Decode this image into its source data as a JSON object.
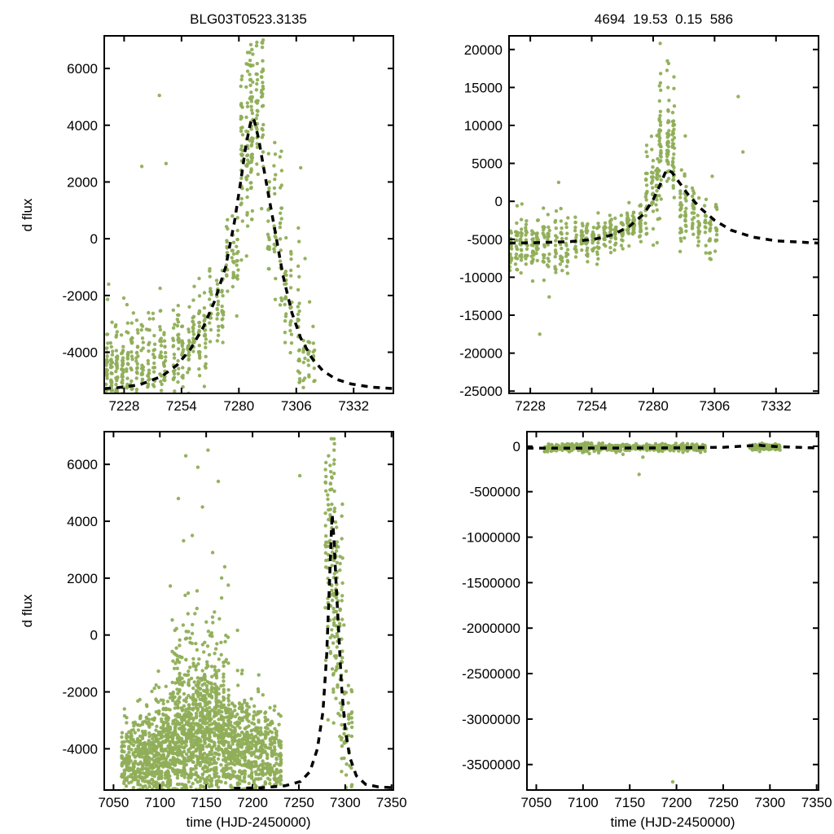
{
  "figure": {
    "background": "#ffffff",
    "scatter_color": "#8fae57",
    "model_color": "#000000",
    "axis_color": "#000000"
  },
  "chart_data": [
    {
      "id": "top-left",
      "type": "scatter",
      "title": "BLG03T0523.3135",
      "xlabel": "",
      "ylabel": "d flux",
      "xlim": [
        7219,
        7350
      ],
      "ylim": [
        -5450,
        7150
      ],
      "xticks": [
        7228,
        7254,
        7280,
        7306,
        7332
      ],
      "yticks": [
        -4000,
        -2000,
        0,
        2000,
        4000,
        6000
      ],
      "series": [
        {
          "name": "data",
          "type": "scatter",
          "clusters": [
            {
              "x0": 7219,
              "x1": 7228,
              "cy": -4600,
              "sy": 600,
              "n": 110
            },
            {
              "x0": 7219,
              "x1": 7240,
              "cy": -2800,
              "sy": 600,
              "n": 18
            },
            {
              "x0": 7228,
              "x1": 7237,
              "cy": -4400,
              "sy": 750,
              "n": 70
            },
            {
              "x0": 7238,
              "x1": 7248,
              "cy": -4200,
              "sy": 850,
              "n": 80
            },
            {
              "x0": 7249,
              "x1": 7258,
              "cy": -4000,
              "sy": 850,
              "n": 70
            },
            {
              "x0": 7258,
              "x1": 7266,
              "cy": -3500,
              "sy": 800,
              "n": 60
            },
            {
              "x0": 7266,
              "x1": 7274,
              "cy": -2600,
              "sy": 700,
              "n": 55
            },
            {
              "x0": 7274,
              "x1": 7280,
              "cy": -900,
              "sy": 800,
              "n": 45
            },
            {
              "x0": 7280,
              "x1": 7287,
              "cy": 3200,
              "sy": 1700,
              "n": 90
            },
            {
              "x0": 7284,
              "x1": 7292,
              "cy": 4600,
              "sy": 1400,
              "n": 80
            },
            {
              "x0": 7292,
              "x1": 7300,
              "cy": 700,
              "sy": 1500,
              "n": 60
            },
            {
              "x0": 7300,
              "x1": 7308,
              "cy": -2300,
              "sy": 1100,
              "n": 55
            },
            {
              "x0": 7306,
              "x1": 7315,
              "cy": -4300,
              "sy": 600,
              "n": 40
            }
          ],
          "points": [
            [
              7244,
              5050
            ],
            [
              7236,
              2550
            ],
            [
              7247,
              2650
            ],
            [
              7262,
              -1400
            ],
            [
              7291,
              7000
            ],
            [
              7288,
              6800
            ],
            [
              7308,
              2500
            ],
            [
              7310,
              -700
            ],
            [
              7221,
              -1600
            ]
          ]
        },
        {
          "name": "model",
          "type": "line",
          "dashed": true,
          "points": [
            [
              7219,
              -5280
            ],
            [
              7225,
              -5250
            ],
            [
              7235,
              -5150
            ],
            [
              7245,
              -4850
            ],
            [
              7252,
              -4450
            ],
            [
              7258,
              -3900
            ],
            [
              7264,
              -3100
            ],
            [
              7269,
              -2200
            ],
            [
              7274,
              -1000
            ],
            [
              7278,
              600
            ],
            [
              7281,
              2100
            ],
            [
              7283,
              3200
            ],
            [
              7285,
              4000
            ],
            [
              7286,
              4250
            ],
            [
              7287,
              4150
            ],
            [
              7289,
              3500
            ],
            [
              7291,
              2600
            ],
            [
              7294,
              1300
            ],
            [
              7297,
              0
            ],
            [
              7300,
              -1300
            ],
            [
              7304,
              -2600
            ],
            [
              7308,
              -3500
            ],
            [
              7313,
              -4200
            ],
            [
              7318,
              -4650
            ],
            [
              7324,
              -4950
            ],
            [
              7331,
              -5120
            ],
            [
              7340,
              -5230
            ],
            [
              7350,
              -5280
            ]
          ]
        }
      ]
    },
    {
      "id": "top-right",
      "type": "scatter",
      "title": "4694  19.53  0.15  586",
      "xlabel": "",
      "ylabel": "",
      "xlim": [
        7219,
        7350
      ],
      "ylim": [
        -25300,
        21800
      ],
      "xticks": [
        7228,
        7254,
        7280,
        7306,
        7332
      ],
      "yticks": [
        -25000,
        -20000,
        -15000,
        -10000,
        -5000,
        0,
        5000,
        10000,
        15000,
        20000
      ],
      "series": [
        {
          "name": "data",
          "type": "scatter",
          "clusters": [
            {
              "x0": 7214,
              "x1": 7232,
              "cy": -5800,
              "sy": 1700,
              "n": 160
            },
            {
              "x0": 7232,
              "x1": 7245,
              "cy": -5500,
              "sy": 2000,
              "n": 80
            },
            {
              "x0": 7246,
              "x1": 7258,
              "cy": -4800,
              "sy": 1300,
              "n": 90
            },
            {
              "x0": 7258,
              "x1": 7268,
              "cy": -4100,
              "sy": 1100,
              "n": 80
            },
            {
              "x0": 7268,
              "x1": 7276,
              "cy": -2900,
              "sy": 1300,
              "n": 70
            },
            {
              "x0": 7276,
              "x1": 7283,
              "cy": 1500,
              "sy": 3200,
              "n": 70
            },
            {
              "x0": 7282,
              "x1": 7290,
              "cy": 7500,
              "sy": 3800,
              "n": 110
            },
            {
              "x0": 7290,
              "x1": 7298,
              "cy": -800,
              "sy": 2500,
              "n": 60
            },
            {
              "x0": 7298,
              "x1": 7308,
              "cy": -3600,
              "sy": 1800,
              "n": 55
            }
          ],
          "points": [
            [
              7283,
              20800
            ],
            [
              7286,
              18500
            ],
            [
              7316,
              13800
            ],
            [
              7318,
              6500
            ],
            [
              7232,
              -17500
            ],
            [
              7236,
              -12600
            ],
            [
              7229,
              -10500
            ],
            [
              7305,
              3300
            ],
            [
              7240,
              2500
            ]
          ]
        },
        {
          "name": "model",
          "type": "line",
          "dashed": true,
          "points": [
            [
              7219,
              -5500
            ],
            [
              7230,
              -5450
            ],
            [
              7245,
              -5300
            ],
            [
              7255,
              -5000
            ],
            [
              7263,
              -4400
            ],
            [
              7270,
              -3300
            ],
            [
              7276,
              -1700
            ],
            [
              7280,
              200
            ],
            [
              7283,
              2200
            ],
            [
              7285,
              3700
            ],
            [
              7286,
              4200
            ],
            [
              7288,
              3800
            ],
            [
              7291,
              2500
            ],
            [
              7295,
              800
            ],
            [
              7300,
              -900
            ],
            [
              7306,
              -2500
            ],
            [
              7313,
              -3800
            ],
            [
              7322,
              -4700
            ],
            [
              7332,
              -5200
            ],
            [
              7350,
              -5500
            ]
          ]
        }
      ]
    },
    {
      "id": "bottom-left",
      "type": "scatter",
      "title": "",
      "xlabel": "time (HJD-2450000)",
      "ylabel": "d flux",
      "xlim": [
        7040,
        7352
      ],
      "ylim": [
        -5450,
        7150
      ],
      "xticks": [
        7050,
        7100,
        7150,
        7200,
        7250,
        7300,
        7350
      ],
      "yticks": [
        -4000,
        -2000,
        0,
        2000,
        4000,
        6000
      ],
      "series": [
        {
          "name": "data",
          "type": "scatter",
          "clusters": [
            {
              "x0": 7058,
              "x1": 7075,
              "cy": -4500,
              "sy": 650,
              "n": 140
            },
            {
              "x0": 7075,
              "x1": 7095,
              "cy": -4300,
              "sy": 850,
              "n": 240
            },
            {
              "x0": 7095,
              "x1": 7115,
              "cy": -4000,
              "sy": 1050,
              "n": 290
            },
            {
              "x0": 7115,
              "x1": 7135,
              "cy": -3800,
              "sy": 1250,
              "n": 330
            },
            {
              "x0": 7135,
              "x1": 7155,
              "cy": -3600,
              "sy": 1350,
              "n": 330
            },
            {
              "x0": 7155,
              "x1": 7175,
              "cy": -3700,
              "sy": 1250,
              "n": 290
            },
            {
              "x0": 7175,
              "x1": 7195,
              "cy": -4000,
              "sy": 1050,
              "n": 240
            },
            {
              "x0": 7195,
              "x1": 7215,
              "cy": -4200,
              "sy": 950,
              "n": 190
            },
            {
              "x0": 7215,
              "x1": 7232,
              "cy": -4300,
              "sy": 850,
              "n": 140
            },
            {
              "x0": 7110,
              "x1": 7175,
              "cy": -700,
              "sy": 1400,
              "n": 70
            },
            {
              "x0": 7278,
              "x1": 7292,
              "cy": 3000,
              "sy": 2100,
              "n": 110
            },
            {
              "x0": 7286,
              "x1": 7298,
              "cy": 300,
              "sy": 1900,
              "n": 60
            },
            {
              "x0": 7295,
              "x1": 7308,
              "cy": -3100,
              "sy": 1200,
              "n": 55
            }
          ],
          "points": [
            [
              7128,
              6300
            ],
            [
              7141,
              5900
            ],
            [
              7152,
              6500
            ],
            [
              7163,
              5400
            ],
            [
              7120,
              4800
            ],
            [
              7146,
              4500
            ],
            [
              7135,
              3500
            ],
            [
              7157,
              2900
            ],
            [
              7170,
              2400
            ],
            [
              7251,
              5600
            ],
            [
              7285,
              6900
            ],
            [
              7288,
              6500
            ],
            [
              7282,
              6300
            ],
            [
              7305,
              -4600
            ]
          ]
        },
        {
          "name": "model",
          "type": "line",
          "dashed": true,
          "points": [
            [
              7180,
              -5390
            ],
            [
              7210,
              -5370
            ],
            [
              7235,
              -5300
            ],
            [
              7252,
              -5150
            ],
            [
              7262,
              -4800
            ],
            [
              7270,
              -4000
            ],
            [
              7276,
              -2700
            ],
            [
              7280,
              -700
            ],
            [
              7283,
              1800
            ],
            [
              7285,
              3600
            ],
            [
              7286,
              4250
            ],
            [
              7288,
              3300
            ],
            [
              7290,
              1900
            ],
            [
              7293,
              100
            ],
            [
              7296,
              -1800
            ],
            [
              7300,
              -3300
            ],
            [
              7305,
              -4300
            ],
            [
              7312,
              -4950
            ],
            [
              7322,
              -5250
            ],
            [
              7336,
              -5340
            ],
            [
              7352,
              -5370
            ]
          ]
        }
      ]
    },
    {
      "id": "bottom-right",
      "type": "scatter",
      "title": "",
      "xlabel": "time (HJD-2450000)",
      "ylabel": "",
      "xlim": [
        7040,
        7352
      ],
      "ylim": [
        -3780000,
        160000
      ],
      "xticks": [
        7050,
        7100,
        7150,
        7200,
        7250,
        7300,
        7350
      ],
      "yticks": [
        0,
        -500000,
        -1000000,
        -1500000,
        -2000000,
        -2500000,
        -3000000,
        -3500000
      ],
      "series": [
        {
          "name": "data",
          "type": "scatter",
          "clusters": [
            {
              "x0": 7058,
              "x1": 7232,
              "cy": -15000,
              "sy": 22000,
              "n": 420
            },
            {
              "x0": 7278,
              "x1": 7312,
              "cy": -8000,
              "sy": 18000,
              "n": 130
            }
          ],
          "points": [
            [
              7160,
              -310000
            ],
            [
              7164,
              -120000
            ],
            [
              7196,
              -3690000
            ]
          ]
        },
        {
          "name": "model",
          "type": "line",
          "dashed": true,
          "points": [
            [
              7040,
              -22000
            ],
            [
              7100,
              -21000
            ],
            [
              7200,
              -18000
            ],
            [
              7250,
              -12000
            ],
            [
              7280,
              6000
            ],
            [
              7286,
              15000
            ],
            [
              7292,
              7000
            ],
            [
              7310,
              -6000
            ],
            [
              7352,
              -20000
            ]
          ]
        }
      ]
    }
  ]
}
